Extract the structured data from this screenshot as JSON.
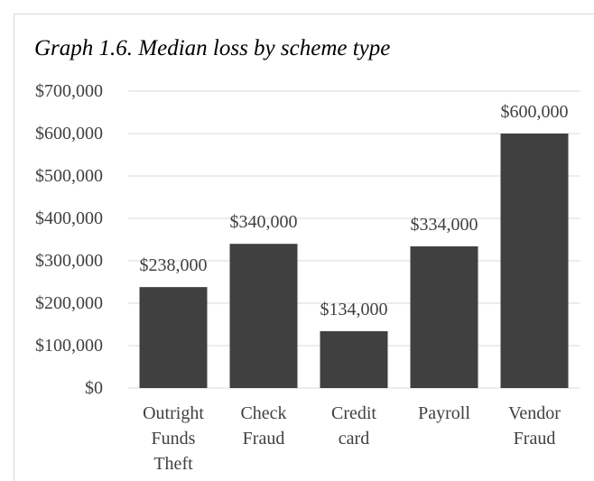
{
  "chart_data": {
    "type": "bar",
    "title": "Graph 1.6. Median loss by scheme type",
    "categories": [
      "Outright Funds Theft",
      "Check Fraud",
      "Credit card",
      "Payroll",
      "Vendor Fraud"
    ],
    "values": [
      238000,
      340000,
      134000,
      334000,
      600000
    ],
    "value_labels": [
      "$238,000",
      "$340,000",
      "$134,000",
      "$334,000",
      "$600,000"
    ],
    "color": "#404040",
    "ylim": [
      0,
      700000
    ],
    "yticks": [
      {
        "value": 0,
        "label": "$0"
      },
      {
        "value": 100000,
        "label": "$100,000"
      },
      {
        "value": 200000,
        "label": "$200,000"
      },
      {
        "value": 300000,
        "label": "$300,000"
      },
      {
        "value": 400000,
        "label": "$400,000"
      },
      {
        "value": 500000,
        "label": "$500,000"
      },
      {
        "value": 600000,
        "label": "$600,000"
      },
      {
        "value": 700000,
        "label": "$700,000"
      }
    ],
    "grid": true
  }
}
